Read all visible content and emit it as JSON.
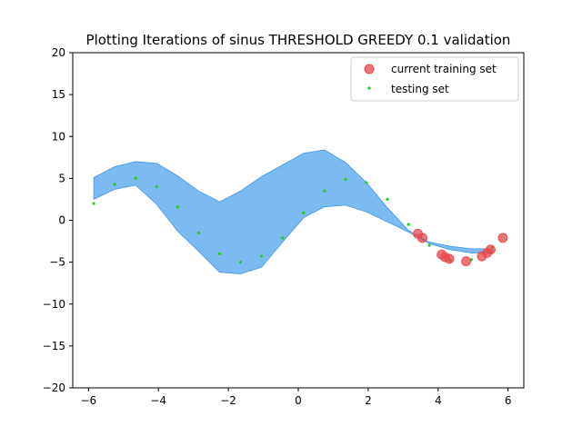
{
  "chart_data": {
    "type": "scatter",
    "title": "Plotting Iterations of sinus THRESHOLD GREEDY 0.1 validation",
    "xlabel": "",
    "ylabel": "",
    "xlim": [
      -6.45,
      6.45
    ],
    "ylim": [
      -20,
      20
    ],
    "xticks": [
      -6,
      -4,
      -2,
      0,
      2,
      4,
      6
    ],
    "yticks": [
      -20,
      -15,
      -10,
      -5,
      0,
      5,
      10,
      15,
      20
    ],
    "grid": false,
    "legend_position": "top-right",
    "colors": {
      "band": "#5aaaee",
      "band_edge": "#3e95e0",
      "training": "#e8474a",
      "testing": "#22cc22"
    },
    "band": {
      "x": [
        -5.85,
        -5.25,
        -4.65,
        -4.05,
        -3.45,
        -2.85,
        -2.25,
        -1.65,
        -1.05,
        -0.45,
        0.15,
        0.75,
        1.35,
        1.95,
        2.55,
        3.15,
        3.75,
        4.35,
        4.95,
        5.55
      ],
      "upper": [
        5.1,
        6.4,
        7.0,
        6.8,
        5.3,
        3.5,
        2.2,
        3.5,
        5.2,
        6.6,
        8.0,
        8.4,
        6.9,
        4.5,
        1.5,
        -1.2,
        -2.6,
        -3.1,
        -3.4,
        -3.4
      ],
      "lower": [
        2.5,
        3.7,
        4.2,
        1.9,
        -1.3,
        -3.7,
        -6.2,
        -6.4,
        -5.6,
        -2.6,
        0.3,
        1.6,
        1.8,
        1.0,
        -0.2,
        -1.4,
        -2.8,
        -3.5,
        -3.9,
        -3.9
      ]
    },
    "series": [
      {
        "name": "current training set",
        "x": [
          3.42,
          3.55,
          4.1,
          4.2,
          4.32,
          4.8,
          5.25,
          5.4,
          5.5,
          5.85
        ],
        "y": [
          -1.6,
          -2.1,
          -4.1,
          -4.4,
          -4.6,
          -4.9,
          -4.3,
          -3.9,
          -3.5,
          -2.1
        ]
      },
      {
        "name": "testing set",
        "x": [
          -5.85,
          -5.25,
          -4.65,
          -4.05,
          -3.45,
          -2.85,
          -2.25,
          -1.65,
          -1.05,
          -0.45,
          0.15,
          0.75,
          1.35,
          1.95,
          2.55,
          3.15,
          3.75,
          4.35,
          4.95,
          5.55
        ],
        "y": [
          2.0,
          4.3,
          5.0,
          4.0,
          1.6,
          -1.5,
          -4.0,
          -5.0,
          -4.3,
          -2.1,
          0.9,
          3.5,
          4.9,
          4.5,
          2.5,
          -0.5,
          -3.0,
          -4.8,
          -4.7,
          -3.2
        ]
      }
    ]
  }
}
